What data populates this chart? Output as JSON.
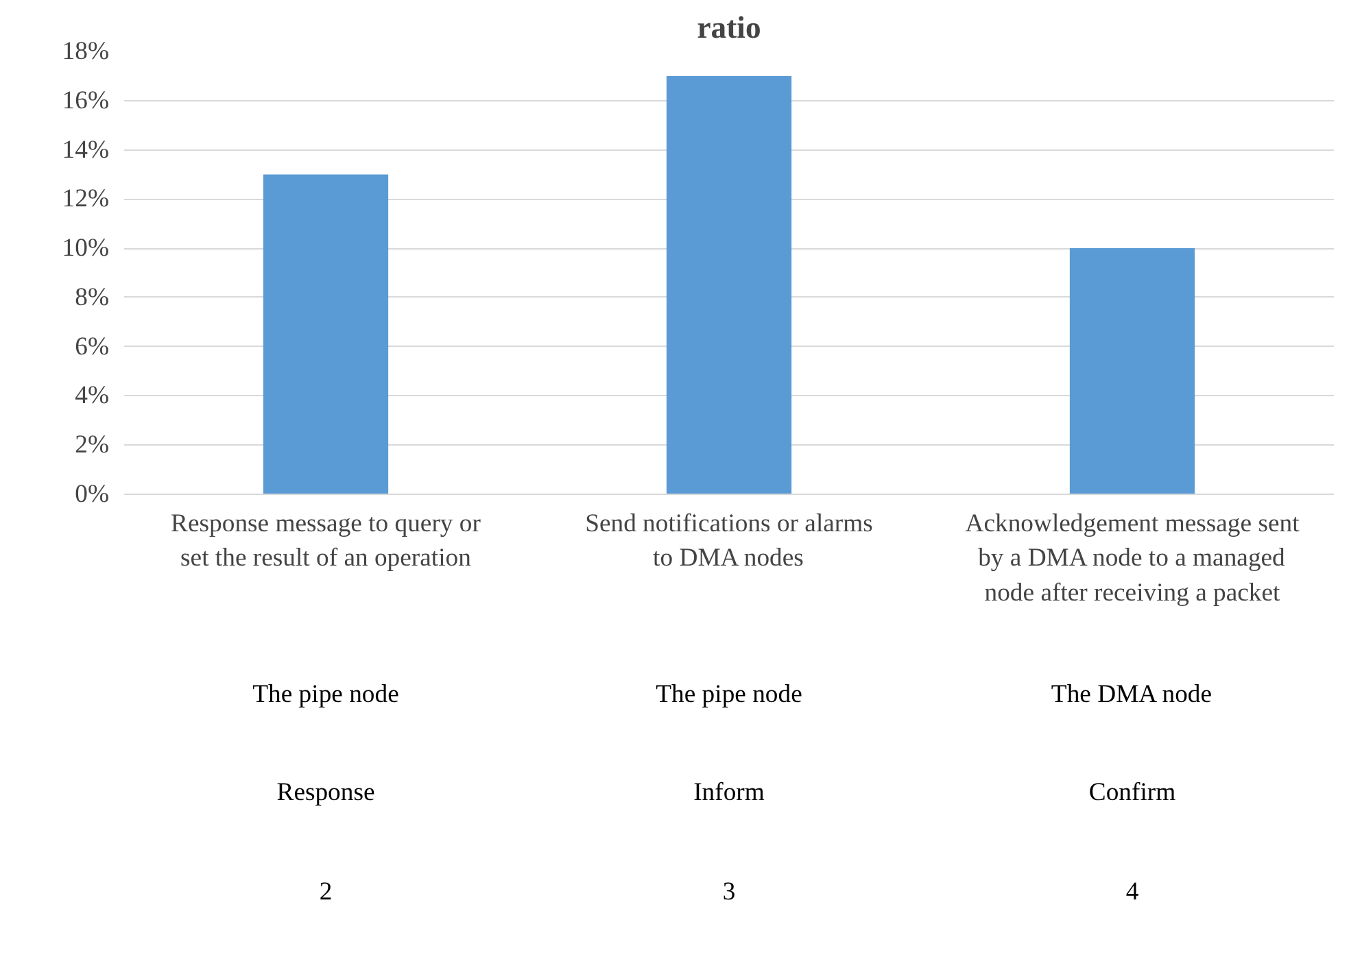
{
  "chart_data": {
    "type": "bar",
    "title": "ratio",
    "categories": [
      "Response message to query or set the result of an operation",
      "Send notifications or alarms to DMA nodes",
      "Acknowledgement message sent by a DMA node to a managed node after receiving a packet"
    ],
    "values": [
      13,
      17,
      10
    ],
    "color": "#5b9bd5",
    "ylim": [
      0,
      18
    ],
    "yticks": [
      {
        "value": 0,
        "label": "0%"
      },
      {
        "value": 2,
        "label": "2%"
      },
      {
        "value": 4,
        "label": "4%"
      },
      {
        "value": 6,
        "label": "6%"
      },
      {
        "value": 8,
        "label": "8%"
      },
      {
        "value": 10,
        "label": "10%"
      },
      {
        "value": 12,
        "label": "12%"
      },
      {
        "value": 14,
        "label": "14%"
      },
      {
        "value": 16,
        "label": "16%"
      },
      {
        "value": 18,
        "label": "18%"
      }
    ],
    "grid": "y",
    "annotations": [
      "The pipe node",
      "The pipe node",
      "The DMA node",
      "Response",
      "Inform",
      "Confirm",
      "2",
      "3",
      "4"
    ]
  }
}
